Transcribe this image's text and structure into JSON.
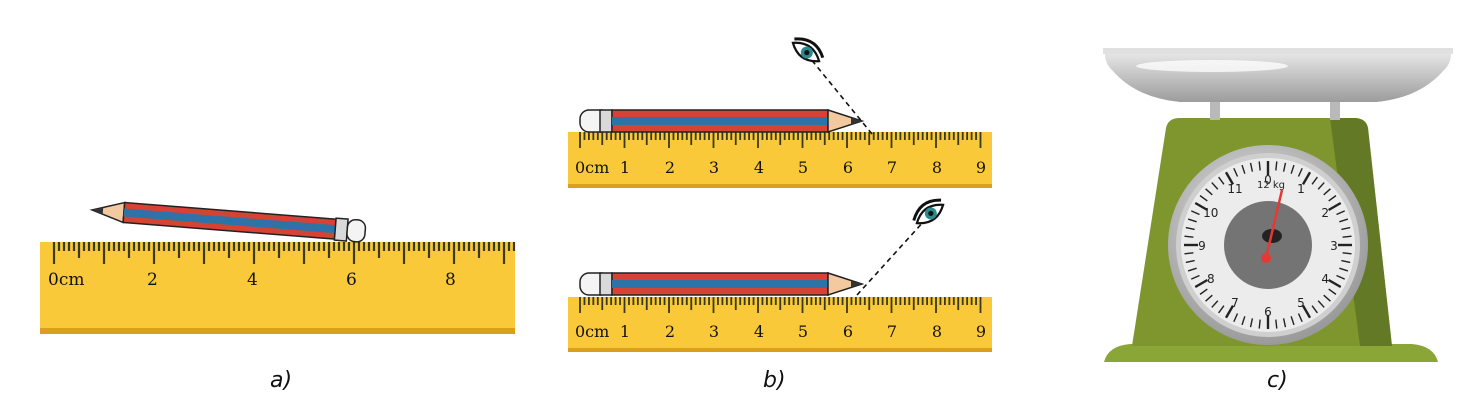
{
  "panels": [
    {
      "id": "a",
      "caption": "a)",
      "ruler": {
        "unit_label": "0cm",
        "labels": [
          "2",
          "4",
          "6",
          "8"
        ]
      }
    },
    {
      "id": "b",
      "caption": "b)",
      "ruler_top": {
        "unit_label": "0cm",
        "labels": [
          "1",
          "2",
          "3",
          "4",
          "5",
          "6",
          "7",
          "8",
          "9"
        ]
      },
      "ruler_bottom": {
        "unit_label": "0cm",
        "labels": [
          "1",
          "2",
          "3",
          "4",
          "5",
          "6",
          "7",
          "8",
          "9"
        ]
      }
    },
    {
      "id": "c",
      "caption": "c)",
      "scale": {
        "dial_labels": [
          "0",
          "1",
          "2",
          "3",
          "4",
          "5",
          "6",
          "7",
          "8",
          "9",
          "10",
          "11"
        ],
        "max_label": "12 kg"
      }
    }
  ],
  "colors": {
    "ruler": "#f9c93a",
    "ruler_edge": "#d99f1d",
    "pencil_red": "#d64234",
    "pencil_blue": "#2e73a8",
    "scale_body": "#7f962f",
    "scale_dark": "#5e7223",
    "needle": "#e53935"
  }
}
